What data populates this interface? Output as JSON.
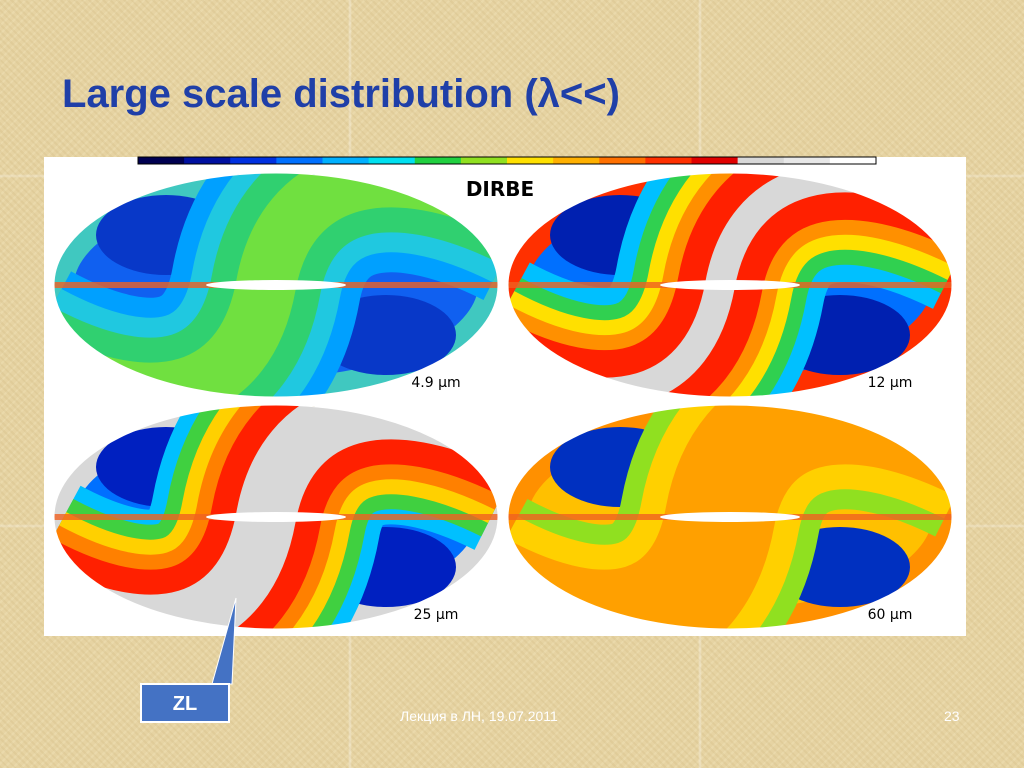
{
  "header": {
    "title": "Large scale distribution (λ<<)"
  },
  "figure": {
    "caption": "DIRBE",
    "maps": [
      {
        "label": "4.9 μm"
      },
      {
        "label": "12 μm"
      },
      {
        "label": "25 μm"
      },
      {
        "label": "60 μm"
      }
    ]
  },
  "callout": {
    "label": "ZL"
  },
  "footer": {
    "text": "Лекция в ЛН, 19.07.2011",
    "page": "23"
  }
}
